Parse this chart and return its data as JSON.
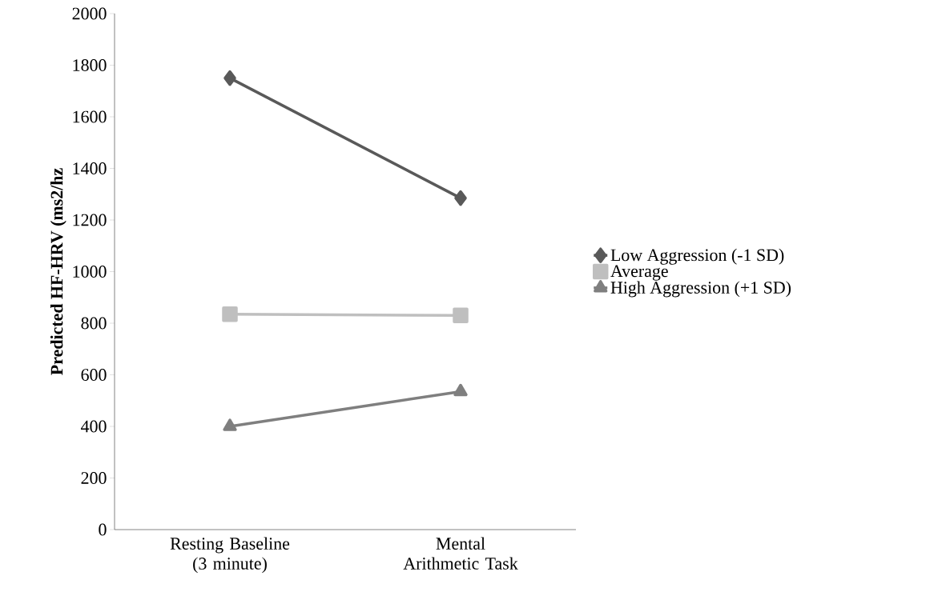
{
  "chart_data": {
    "type": "line",
    "ylabel": "Predicted  HF-HRV (ms2/hz",
    "categories": [
      "Resting Baseline (3 minute)",
      "Mental Arithmetic Task"
    ],
    "series": [
      {
        "name": "Low Aggression (-1 SD)",
        "color": "#595959",
        "marker": "diamond",
        "values": [
          1750,
          1285
        ]
      },
      {
        "name": "Average",
        "color": "#bfbfbf",
        "marker": "square",
        "values": [
          835,
          830
        ]
      },
      {
        "name": "High Aggression (+1 SD)",
        "color": "#7f7f7f",
        "marker": "triangle",
        "values": [
          400,
          535
        ]
      }
    ],
    "ylim": [
      0,
      2000
    ],
    "yticks": [
      0,
      200,
      400,
      600,
      800,
      1000,
      1200,
      1400,
      1600,
      1800,
      2000
    ],
    "grid": false,
    "legend": "right"
  }
}
